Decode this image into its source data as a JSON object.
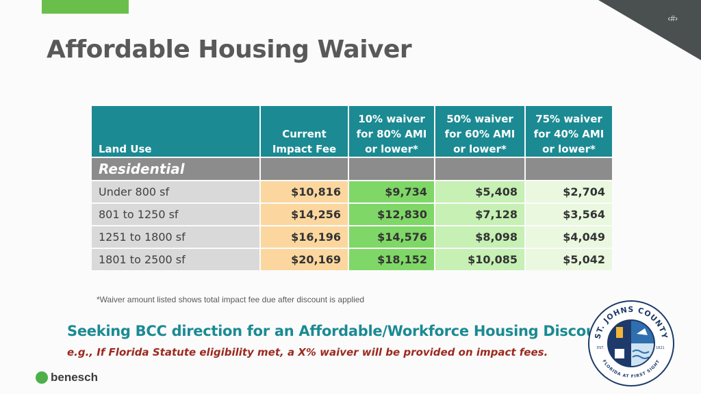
{
  "slide": {
    "number_placeholder": "‹#›",
    "title": "Affordable Housing Waiver"
  },
  "table": {
    "headers": [
      "Land Use",
      "Current Impact Fee",
      "10% waiver for 80% AMI or lower*",
      "50% waiver for 60% AMI or lower*",
      "75% waiver for 40% AMI or lower*"
    ],
    "header_lines": [
      [
        "Land Use"
      ],
      [
        "Current",
        "Impact Fee"
      ],
      [
        "10% waiver",
        "for 80% AMI",
        "or lower*"
      ],
      [
        "50% waiver",
        "for 60% AMI",
        "or lower*"
      ],
      [
        "75% waiver",
        "for 40% AMI",
        "or lower*"
      ]
    ],
    "section": "Residential",
    "rows": [
      [
        "Under 800 sf",
        "$10,816",
        "$9,734",
        "$5,408",
        "$2,704"
      ],
      [
        "801 to 1250 sf",
        "$14,256",
        "$12,830",
        "$7,128",
        "$3,564"
      ],
      [
        "1251 to 1800 sf",
        "$16,196",
        "$14,576",
        "$8,098",
        "$4,049"
      ],
      [
        "1801 to 2500 sf",
        "$20,169",
        "$18,152",
        "$10,085",
        "$5,042"
      ]
    ]
  },
  "footnote": "*Waiver amount listed shows total impact fee due after discount is applied",
  "seeking": "Seeking BCC direction for an Affordable/Workforce Housing Discount:",
  "example": "e.g., If Florida Statute eligibility met, a X% waiver will be provided on impact fees.",
  "logo": {
    "text": "benesch",
    "icon": "benesch-logo-icon"
  },
  "seal": {
    "top_text": "ST. JOHNS COUNTY",
    "bottom_text": "FLORIDA AT FIRST SIGHT",
    "est_label": "EST.",
    "year": "1821",
    "icon": "county-seal-icon"
  },
  "colors": {
    "header": "#1b8a93",
    "section": "#8c8c8c",
    "current_fee": "#fbd79f",
    "waiver10": "#7fd767",
    "waiver50": "#c6f0b4",
    "waiver75": "#eaf8e0",
    "seeking_text": "#1b8a93",
    "example_text": "#9b2a20"
  }
}
